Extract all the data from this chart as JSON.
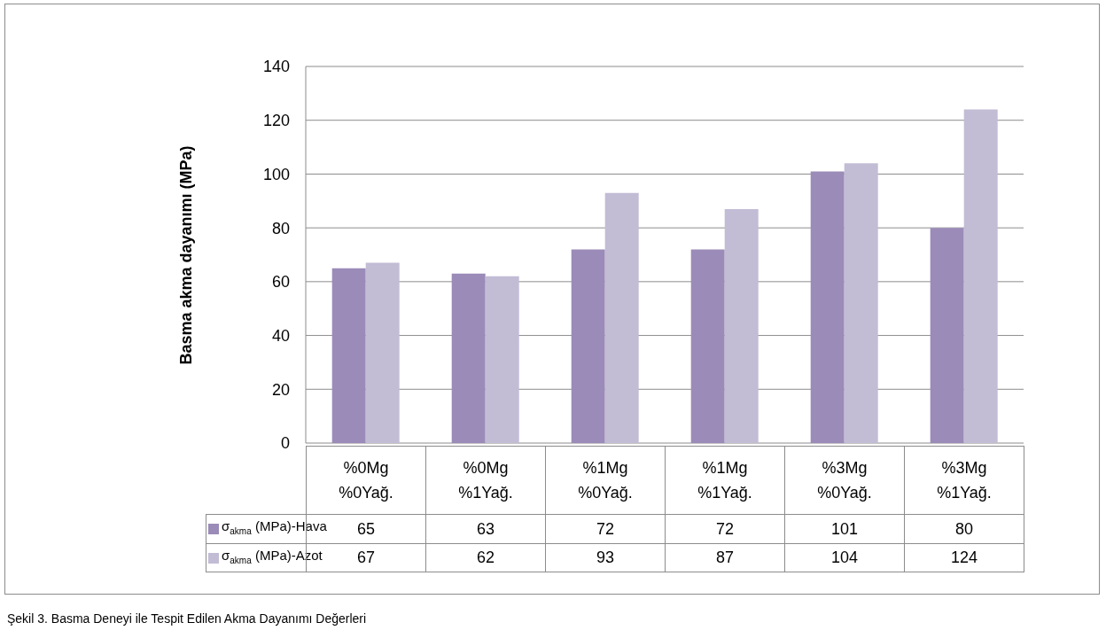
{
  "chart_data": {
    "type": "bar",
    "ylabel": "Basma akma dayanımı (MPa)",
    "categories": [
      "%0Mg\n%0Yağ.",
      "%0Mg\n%1Yağ.",
      "%1Mg\n%0Yağ.",
      "%1Mg\n%1Yağ.",
      "%3Mg\n%0Yağ.",
      "%3Mg\n%1Yağ."
    ],
    "series": [
      {
        "name": "σ$_{akma}$ (MPa)-Hava",
        "color": "#9b8bb8",
        "values": [
          65,
          63,
          72,
          72,
          101,
          80
        ]
      },
      {
        "name": "σ$_{akma}$ (MPa)-Azot",
        "color": "#c3bcd5",
        "values": [
          67,
          62,
          93,
          87,
          104,
          124
        ]
      }
    ],
    "ylim": [
      0,
      140
    ],
    "yticks": [
      0,
      20,
      40,
      60,
      80,
      100,
      120,
      140
    ],
    "grid": "y",
    "legend": "bottom",
    "data_labels": true,
    "annotations": [
      "Şekil 3. Basma Deneyi ile Tespit Edilen Akma Dayanımı Değerleri"
    ]
  }
}
